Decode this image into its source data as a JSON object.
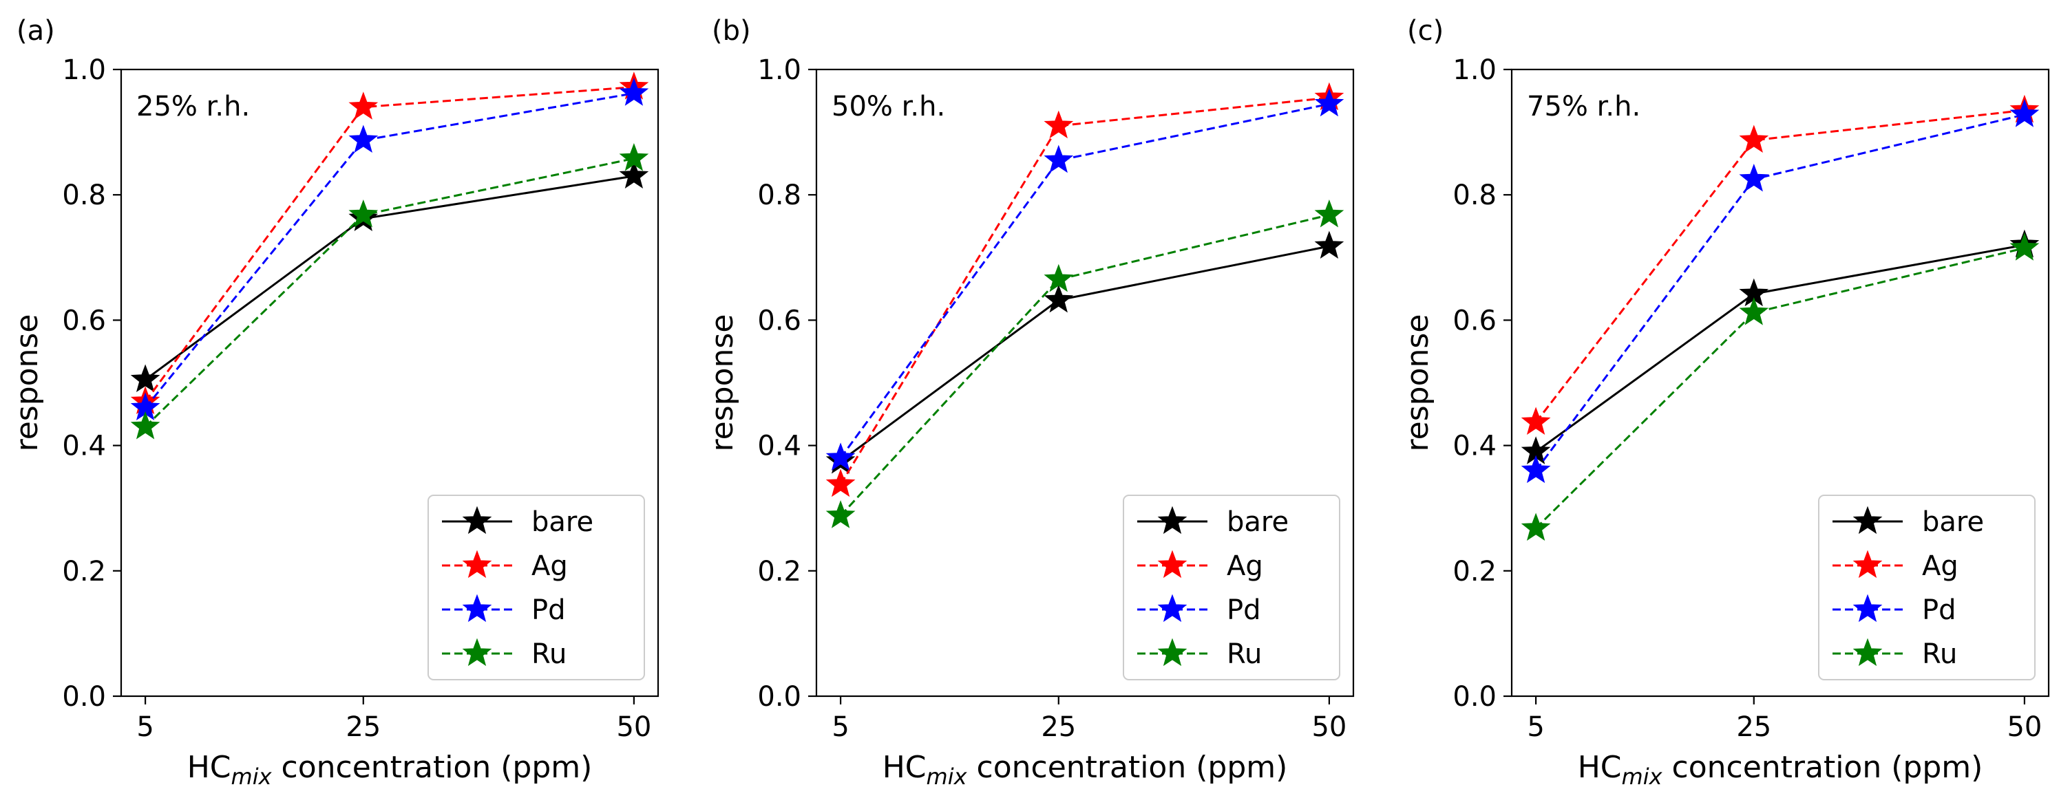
{
  "chart_data": [
    {
      "type": "line",
      "panel_label": "(a)",
      "title": "25% r.h.",
      "xlabel_prefix": "HC",
      "xlabel_subscript": "mix",
      "xlabel_suffix": " concentration (ppm)",
      "ylabel": "response",
      "categories": [
        "5",
        "25",
        "50"
      ],
      "ylim": [
        0,
        1.0
      ],
      "yticks": [
        "0.0",
        "0.2",
        "0.4",
        "0.6",
        "0.8",
        "1.0"
      ],
      "legend_position": "lower-right",
      "series": [
        {
          "name": "bare",
          "color": "#000000",
          "style": "solid",
          "values": [
            0.505,
            0.762,
            0.83
          ]
        },
        {
          "name": "Ag",
          "color": "#ff0000",
          "style": "dashed",
          "values": [
            0.47,
            0.94,
            0.972
          ]
        },
        {
          "name": "Pd",
          "color": "#0000ff",
          "style": "dashed",
          "values": [
            0.46,
            0.887,
            0.962
          ]
        },
        {
          "name": "Ru",
          "color": "#008000",
          "style": "dashed",
          "values": [
            0.43,
            0.768,
            0.858
          ]
        }
      ]
    },
    {
      "type": "line",
      "panel_label": "(b)",
      "title": "50% r.h.",
      "xlabel_prefix": "HC",
      "xlabel_subscript": "mix",
      "xlabel_suffix": " concentration (ppm)",
      "ylabel": "response",
      "categories": [
        "5",
        "25",
        "50"
      ],
      "ylim": [
        0,
        1.0
      ],
      "yticks": [
        "0.0",
        "0.2",
        "0.4",
        "0.6",
        "0.8",
        "1.0"
      ],
      "legend_position": "lower-right",
      "series": [
        {
          "name": "bare",
          "color": "#000000",
          "style": "solid",
          "values": [
            0.375,
            0.632,
            0.718
          ]
        },
        {
          "name": "Ag",
          "color": "#ff0000",
          "style": "dashed",
          "values": [
            0.338,
            0.91,
            0.955
          ]
        },
        {
          "name": "Pd",
          "color": "#0000ff",
          "style": "dashed",
          "values": [
            0.38,
            0.855,
            0.945
          ]
        },
        {
          "name": "Ru",
          "color": "#008000",
          "style": "dashed",
          "values": [
            0.288,
            0.665,
            0.768
          ]
        }
      ]
    },
    {
      "type": "line",
      "panel_label": "(c)",
      "title": "75% r.h.",
      "xlabel_prefix": "HC",
      "xlabel_subscript": "mix",
      "xlabel_suffix": " concentration (ppm)",
      "ylabel": "response",
      "categories": [
        "5",
        "25",
        "50"
      ],
      "ylim": [
        0,
        1.0
      ],
      "yticks": [
        "0.0",
        "0.2",
        "0.4",
        "0.6",
        "0.8",
        "1.0"
      ],
      "legend_position": "lower-right",
      "series": [
        {
          "name": "bare",
          "color": "#000000",
          "style": "solid",
          "values": [
            0.39,
            0.642,
            0.72
          ]
        },
        {
          "name": "Ag",
          "color": "#ff0000",
          "style": "dashed",
          "values": [
            0.437,
            0.887,
            0.935
          ]
        },
        {
          "name": "Pd",
          "color": "#0000ff",
          "style": "dashed",
          "values": [
            0.36,
            0.825,
            0.928
          ]
        },
        {
          "name": "Ru",
          "color": "#008000",
          "style": "dashed",
          "values": [
            0.268,
            0.612,
            0.715
          ]
        }
      ]
    }
  ]
}
